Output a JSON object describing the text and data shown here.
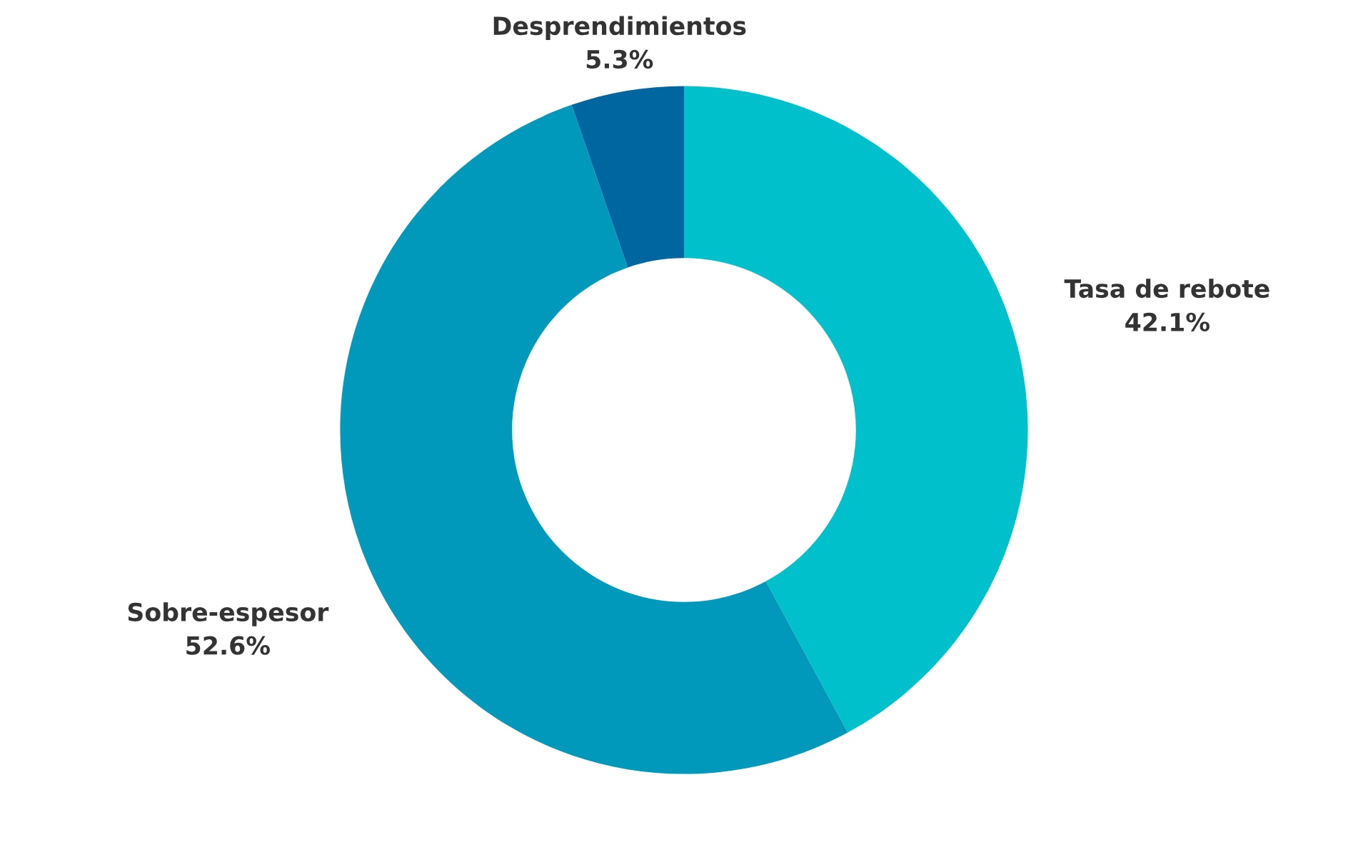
{
  "chart_data": {
    "type": "donut",
    "categories": [
      "Tasa de rebote",
      "Sobre-espesor",
      "Desprendimientos"
    ],
    "values": [
      42.1,
      52.6,
      5.3
    ],
    "value_labels": [
      "42.1%",
      "52.6%",
      "5.3%"
    ],
    "colors": [
      "#00c1cb",
      "#0099bb",
      "#0066a0"
    ],
    "legend": false
  }
}
